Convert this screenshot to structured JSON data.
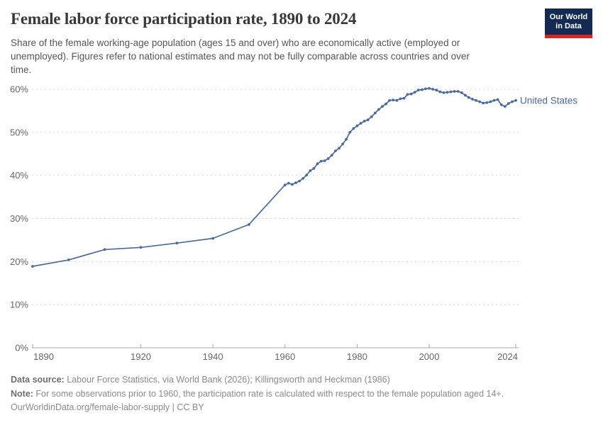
{
  "header": {
    "title": "Female labor force participation rate, 1890 to 2024",
    "subtitle": "Share of the female working-age population (ages 15 and over) who are economically active (employed or\nunemployed). Figures refer to national estimates and may not be fully comparable across countries and over\ntime."
  },
  "logo": {
    "line1": "Our World",
    "line2": "in Data"
  },
  "chart_data": {
    "type": "line",
    "title": "Female labor force participation rate, 1890 to 2024",
    "xlabel": "",
    "ylabel": "",
    "xlim": [
      1890,
      2024
    ],
    "ylim": [
      0,
      60
    ],
    "x_ticks": [
      1890,
      1920,
      1940,
      1960,
      1980,
      2000,
      2024
    ],
    "y_ticks": [
      0,
      10,
      20,
      30,
      40,
      50,
      60
    ],
    "y_tick_suffix": "%",
    "grid": "dashed-horizontal",
    "legend_position": "end-of-line",
    "series": [
      {
        "name": "United States",
        "color": "#4C6A9C",
        "x": [
          1890,
          1900,
          1910,
          1920,
          1930,
          1940,
          1950,
          1960,
          1961,
          1962,
          1963,
          1964,
          1965,
          1966,
          1967,
          1968,
          1969,
          1970,
          1971,
          1972,
          1973,
          1974,
          1975,
          1976,
          1977,
          1978,
          1979,
          1980,
          1981,
          1982,
          1983,
          1984,
          1985,
          1986,
          1987,
          1988,
          1989,
          1990,
          1991,
          1992,
          1993,
          1994,
          1995,
          1996,
          1997,
          1998,
          1999,
          2000,
          2001,
          2002,
          2003,
          2004,
          2005,
          2006,
          2007,
          2008,
          2009,
          2010,
          2011,
          2012,
          2013,
          2014,
          2015,
          2016,
          2017,
          2018,
          2019,
          2020,
          2021,
          2022,
          2023,
          2024
        ],
        "y": [
          18.9,
          20.4,
          22.8,
          23.3,
          24.3,
          25.4,
          28.6,
          37.8,
          38.2,
          37.9,
          38.3,
          38.7,
          39.3,
          40.1,
          41.1,
          41.6,
          42.7,
          43.3,
          43.4,
          43.9,
          44.7,
          45.7,
          46.3,
          47.3,
          48.4,
          50.0,
          50.9,
          51.5,
          52.1,
          52.6,
          52.9,
          53.6,
          54.5,
          55.3,
          56.0,
          56.6,
          57.4,
          57.5,
          57.4,
          57.8,
          57.9,
          58.8,
          58.9,
          59.3,
          59.8,
          59.9,
          60.1,
          60.2,
          60.0,
          59.8,
          59.4,
          59.2,
          59.3,
          59.4,
          59.5,
          59.5,
          59.2,
          58.6,
          58.1,
          57.7,
          57.4,
          57.1,
          56.8,
          56.9,
          57.1,
          57.4,
          57.6,
          56.4,
          56.0,
          56.7,
          57.1,
          57.4
        ]
      }
    ]
  },
  "footer": {
    "source_label": "Data source:",
    "source_text": " Labour Force Statistics, via World Bank (2026); Killingsworth and Heckman (1986)",
    "note_label": "Note:",
    "note_text": " For some observations prior to 1960, the participation rate is calculated with respect to the female population aged 14+.",
    "url": "OurWorldinData.org/female-labor-supply",
    "license": " | CC BY"
  },
  "colors": {
    "line": "#4C6A9C",
    "grid": "#dcdcdc",
    "axis": "#a9a9a9",
    "tick_label": "#666666",
    "title": "#383838",
    "subtitle": "#555555",
    "footer_label": "#6e6e6e",
    "footer_text": "#8a8a8a",
    "logo_bg": "#152a52",
    "logo_red": "#d7271f",
    "background": "#ffffff"
  }
}
